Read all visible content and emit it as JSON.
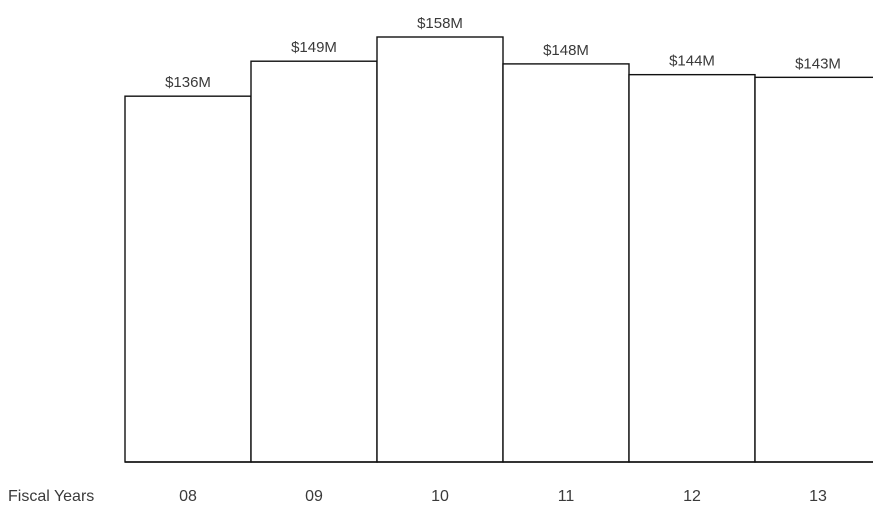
{
  "chart_data": {
    "type": "bar",
    "title": "",
    "xlabel": "Fiscal Years",
    "ylabel": "",
    "categories": [
      "08",
      "09",
      "10",
      "11",
      "12",
      "13"
    ],
    "values": [
      136,
      149,
      158,
      148,
      144,
      143
    ],
    "data_labels": [
      "$136M",
      "$149M",
      "$158M",
      "$148M",
      "$144M",
      "$143M"
    ],
    "unit": "$M",
    "ylim": [
      0,
      158
    ],
    "grid": false,
    "legend": "none",
    "colors": {
      "bar_fill": "#ffffff",
      "bar_stroke": "#111111",
      "text": "#3a3a3a"
    }
  }
}
